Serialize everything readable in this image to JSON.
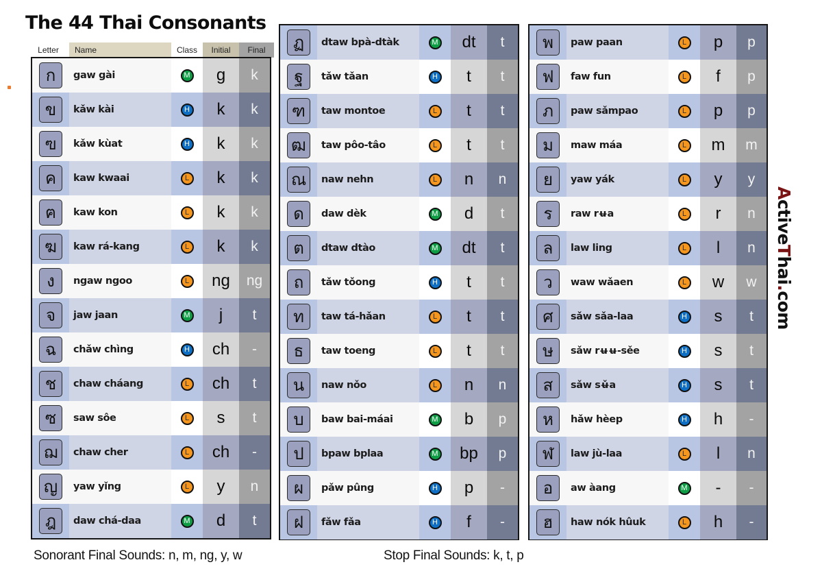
{
  "title": "The 44 Thai Consonants",
  "headers": {
    "letter": "Letter",
    "name": "Name",
    "class": "Class",
    "initial": "Initial",
    "final": "Final"
  },
  "class_colors": {
    "M": "#0e9c45",
    "H": "#0f6fc4",
    "L": "#f5961f"
  },
  "tone_mark_color": "#7a1414",
  "panels": [
    {
      "start_tinted": false,
      "rows": [
        {
          "letter": "ก",
          "name": "gaw gài",
          "class": "M",
          "initial": "g",
          "final": "k"
        },
        {
          "letter": "ข",
          "name": "kǎw kài",
          "class": "H",
          "initial": "k",
          "final": "k"
        },
        {
          "letter": "ฃ",
          "name": "kǎw kùat",
          "class": "H",
          "initial": "k",
          "final": "k"
        },
        {
          "letter": "ค",
          "name": "kaw kwaai",
          "class": "L",
          "initial": "k",
          "final": "k"
        },
        {
          "letter": "ฅ",
          "name": "kaw kon",
          "class": "L",
          "initial": "k",
          "final": "k"
        },
        {
          "letter": "ฆ",
          "name": "kaw rá-kang",
          "class": "L",
          "initial": "k",
          "final": "k"
        },
        {
          "letter": "ง",
          "name": "ngaw ngoo",
          "class": "L",
          "initial": "ng",
          "final": "ng"
        },
        {
          "letter": "จ",
          "name": "jaw jaan",
          "class": "M",
          "initial": "j",
          "final": "t"
        },
        {
          "letter": "ฉ",
          "name": "chǎw chìng",
          "class": "H",
          "initial": "ch",
          "final": "-"
        },
        {
          "letter": "ช",
          "name": "chaw cháang",
          "class": "L",
          "initial": "ch",
          "final": "t"
        },
        {
          "letter": "ซ",
          "name": "saw sôe",
          "class": "L",
          "initial": "s",
          "final": "t"
        },
        {
          "letter": "ฌ",
          "name": "chaw cher",
          "class": "L",
          "initial": "ch",
          "final": "-"
        },
        {
          "letter": "ญ",
          "name": "yaw yǐng",
          "class": "L",
          "initial": "y",
          "final": "n"
        },
        {
          "letter": "ฎ",
          "name": "daw chá-daa",
          "class": "M",
          "initial": "d",
          "final": "t"
        }
      ]
    },
    {
      "start_tinted": true,
      "rows": [
        {
          "letter": "ฏ",
          "name": "dtaw bpà-dtàk",
          "class": "M",
          "initial": "dt",
          "final": "t"
        },
        {
          "letter": "ฐ",
          "name": "tǎw tǎan",
          "class": "H",
          "initial": "t",
          "final": "t"
        },
        {
          "letter": "ฑ",
          "name": "taw montoe",
          "class": "L",
          "initial": "t",
          "final": "t"
        },
        {
          "letter": "ฒ",
          "name": "taw pôo-tâo",
          "class": "L",
          "initial": "t",
          "final": "t"
        },
        {
          "letter": "ณ",
          "name": "naw nehn",
          "class": "L",
          "initial": "n",
          "final": "n"
        },
        {
          "letter": "ด",
          "name": "daw dèk",
          "class": "M",
          "initial": "d",
          "final": "t"
        },
        {
          "letter": "ต",
          "name": "dtaw dtào",
          "class": "M",
          "initial": "dt",
          "final": "t"
        },
        {
          "letter": "ถ",
          "name": "tǎw tǒong",
          "class": "H",
          "initial": "t",
          "final": "t"
        },
        {
          "letter": "ท",
          "name": "taw tá-hǎan",
          "class": "L",
          "initial": "t",
          "final": "t"
        },
        {
          "letter": "ธ",
          "name": "taw toeng",
          "class": "L",
          "initial": "t",
          "final": "t"
        },
        {
          "letter": "น",
          "name": "naw nǒo",
          "class": "L",
          "initial": "n",
          "final": "n"
        },
        {
          "letter": "บ",
          "name": "baw bai-máai",
          "class": "M",
          "initial": "b",
          "final": "p"
        },
        {
          "letter": "ป",
          "name": "bpaw bplaa",
          "class": "M",
          "initial": "bp",
          "final": "p"
        },
        {
          "letter": "ผ",
          "name": "pǎw pûng",
          "class": "H",
          "initial": "p",
          "final": "-"
        },
        {
          "letter": "ฝ",
          "name": "fǎw fǎa",
          "class": "H",
          "initial": "f",
          "final": "-"
        }
      ]
    },
    {
      "start_tinted": true,
      "rows": [
        {
          "letter": "พ",
          "name": "paw paan",
          "class": "L",
          "initial": "p",
          "final": "p"
        },
        {
          "letter": "ฟ",
          "name": "faw fun",
          "class": "L",
          "initial": "f",
          "final": "p"
        },
        {
          "letter": "ภ",
          "name": "paw sǎmpao",
          "class": "L",
          "initial": "p",
          "final": "p"
        },
        {
          "letter": "ม",
          "name": "maw máa",
          "class": "L",
          "initial": "m",
          "final": "m"
        },
        {
          "letter": "ย",
          "name": "yaw yák",
          "class": "L",
          "initial": "y",
          "final": "y"
        },
        {
          "letter": "ร",
          "name": "raw rʉa",
          "class": "L",
          "initial": "r",
          "final": "n"
        },
        {
          "letter": "ล",
          "name": "law ling",
          "class": "L",
          "initial": "l",
          "final": "n"
        },
        {
          "letter": "ว",
          "name": "waw wǎaen",
          "class": "L",
          "initial": "w",
          "final": "w"
        },
        {
          "letter": "ศ",
          "name": "sǎw sǎa-laa",
          "class": "H",
          "initial": "s",
          "final": "t"
        },
        {
          "letter": "ษ",
          "name": "sǎw rʉʉ-sěe",
          "class": "H",
          "initial": "s",
          "final": "t"
        },
        {
          "letter": "ส",
          "name": "sǎw sʉ̌a",
          "class": "H",
          "initial": "s",
          "final": "t"
        },
        {
          "letter": "ห",
          "name": "hǎw hèep",
          "class": "H",
          "initial": "h",
          "final": "-"
        },
        {
          "letter": "ฬ",
          "name": "law jù-laa",
          "class": "L",
          "initial": "l",
          "final": "n"
        },
        {
          "letter": "อ",
          "name": "aw àang",
          "class": "M",
          "initial": "-",
          "final": "-"
        },
        {
          "letter": "ฮ",
          "name": "haw nók hûuk",
          "class": "L",
          "initial": "h",
          "final": "-"
        }
      ]
    }
  ],
  "brand": {
    "parts": [
      {
        "text": "A",
        "red": true
      },
      {
        "text": "ctive",
        "red": false
      },
      {
        "text": "T",
        "red": true
      },
      {
        "text": "hai",
        "red": false
      },
      {
        "text": ".",
        "red": true
      },
      {
        "text": "com",
        "red": false
      }
    ]
  },
  "footer": {
    "sonorant": "Sonorant Final Sounds: n, m, ng, y, w",
    "stop": "Stop Final Sounds: k, t, p"
  }
}
